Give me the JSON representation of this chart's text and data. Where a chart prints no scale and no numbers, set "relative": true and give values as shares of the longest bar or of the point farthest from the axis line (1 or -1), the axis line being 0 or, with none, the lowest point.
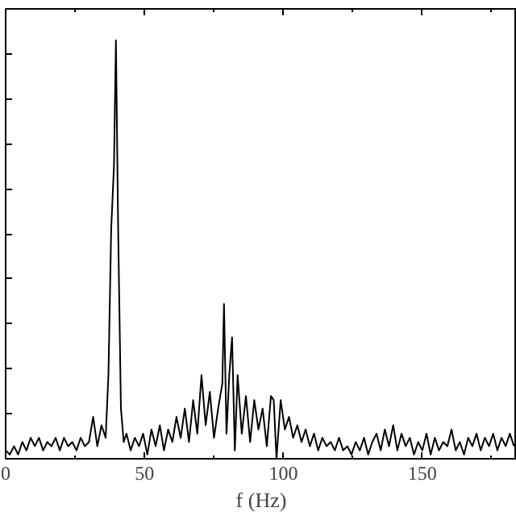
{
  "chart_data": {
    "type": "line",
    "xlabel": "f (Hz)",
    "relative": true,
    "xlim": [
      0,
      184
    ],
    "xticks": [
      0,
      50,
      100,
      150
    ],
    "tick_labels": "x",
    "line_style": "solid",
    "series": [
      {
        "color": "#000000",
        "x": [
          0,
          1.5,
          3,
          4.5,
          6,
          7.5,
          9,
          10.5,
          12,
          13.5,
          15,
          16.5,
          18,
          19.5,
          21,
          22.5,
          24,
          25.5,
          27,
          28.5,
          30,
          31.5,
          33,
          34.5,
          36,
          37,
          38,
          39,
          39.7,
          40.5,
          41.5,
          42.5,
          43.5,
          45,
          46.5,
          48,
          49.5,
          51,
          52.5,
          54,
          55.5,
          57,
          58.5,
          60,
          61.5,
          63,
          64.5,
          66,
          67.5,
          69,
          70.5,
          72,
          73.5,
          75,
          76.5,
          78,
          78.6,
          79.5,
          80.5,
          81.5,
          82.5,
          83.5,
          85,
          86.5,
          88,
          89.5,
          91,
          92.5,
          94,
          95.5,
          96.5,
          97.5,
          99,
          100.5,
          102,
          103.5,
          105,
          106.5,
          108,
          109.5,
          111,
          112.5,
          114,
          115.5,
          117,
          118.5,
          120,
          121.5,
          123,
          124.5,
          126,
          127.5,
          129,
          130.5,
          132,
          133.5,
          135,
          136.5,
          138,
          139.5,
          141,
          142.5,
          144,
          145.5,
          147,
          148.5,
          150,
          151.5,
          153,
          154.5,
          156,
          157.5,
          159,
          160.5,
          162,
          163.5,
          165,
          166.5,
          168,
          169.5,
          171,
          172.5,
          174,
          175.5,
          177,
          178.5,
          180,
          181.5,
          183
        ],
        "values": [
          0.02,
          0.01,
          0.03,
          0.01,
          0.04,
          0.02,
          0.05,
          0.03,
          0.05,
          0.02,
          0.04,
          0.03,
          0.05,
          0.02,
          0.05,
          0.03,
          0.04,
          0.02,
          0.05,
          0.03,
          0.04,
          0.1,
          0.03,
          0.08,
          0.05,
          0.2,
          0.55,
          0.7,
          1.0,
          0.55,
          0.12,
          0.04,
          0.06,
          0.02,
          0.05,
          0.03,
          0.06,
          0.01,
          0.07,
          0.03,
          0.08,
          0.02,
          0.07,
          0.04,
          0.1,
          0.05,
          0.12,
          0.04,
          0.14,
          0.06,
          0.2,
          0.08,
          0.16,
          0.05,
          0.12,
          0.18,
          0.37,
          0.06,
          0.2,
          0.29,
          0.02,
          0.2,
          0.06,
          0.15,
          0.04,
          0.14,
          0.07,
          0.12,
          0.03,
          0.15,
          0.14,
          0.0,
          0.14,
          0.07,
          0.1,
          0.05,
          0.08,
          0.04,
          0.07,
          0.03,
          0.06,
          0.02,
          0.05,
          0.03,
          0.04,
          0.02,
          0.05,
          0.02,
          0.03,
          0.01,
          0.04,
          0.02,
          0.05,
          0.01,
          0.04,
          0.06,
          0.02,
          0.07,
          0.03,
          0.08,
          0.02,
          0.06,
          0.03,
          0.05,
          0.01,
          0.04,
          0.02,
          0.06,
          0.01,
          0.05,
          0.02,
          0.04,
          0.03,
          0.07,
          0.02,
          0.04,
          0.01,
          0.05,
          0.03,
          0.06,
          0.02,
          0.05,
          0.03,
          0.06,
          0.02,
          0.05,
          0.03,
          0.06,
          0.03
        ]
      }
    ]
  }
}
